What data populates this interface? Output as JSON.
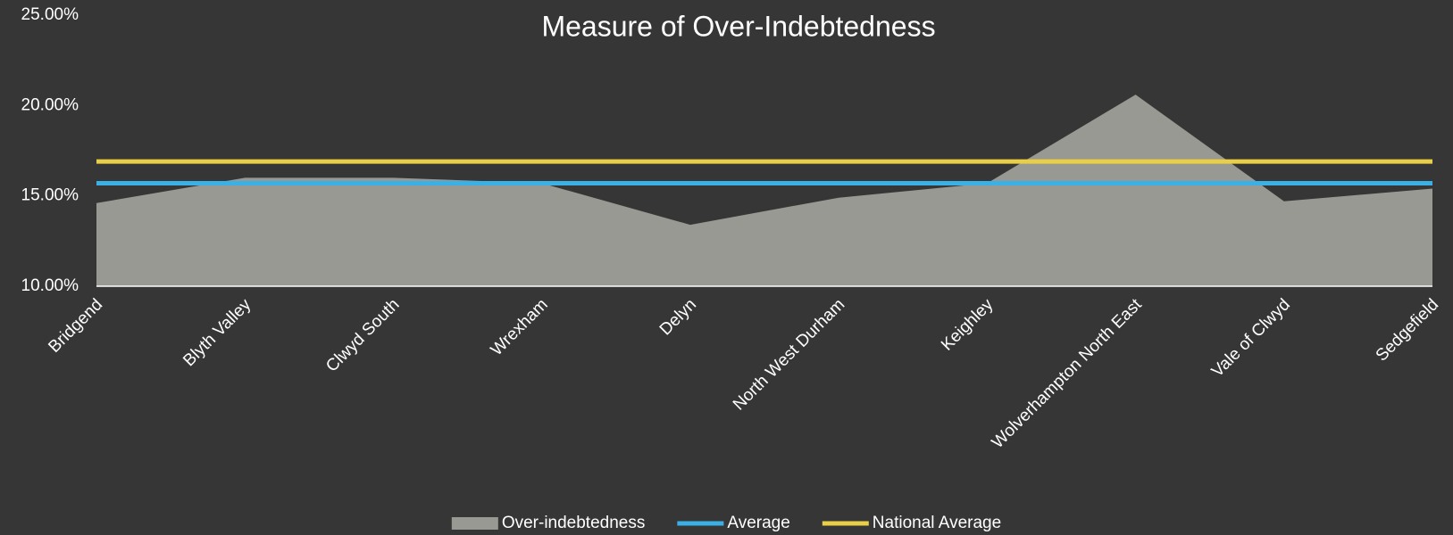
{
  "chart_data": {
    "type": "area",
    "title": "Measure of Over-Indebtedness",
    "categories": [
      "Bridgend",
      "Blyth Valley",
      "Clwyd South",
      "Wrexham",
      "Delyn",
      "North West Durham",
      "Keighley",
      "Wolverhampton North East",
      "Vale of Clwyd",
      "Sedgefield"
    ],
    "series": [
      {
        "name": "Over-indebtedness",
        "type": "area",
        "color": "#999993",
        "values": [
          14.6,
          16.0,
          16.0,
          15.7,
          13.4,
          14.9,
          15.7,
          20.6,
          14.7,
          15.4
        ]
      },
      {
        "name": "Average",
        "type": "line",
        "color": "#3bb0e6",
        "values": [
          15.7,
          15.7,
          15.7,
          15.7,
          15.7,
          15.7,
          15.7,
          15.7,
          15.7,
          15.7
        ]
      },
      {
        "name": "National Average",
        "type": "line",
        "color": "#e8cf47",
        "values": [
          16.9,
          16.9,
          16.9,
          16.9,
          16.9,
          16.9,
          16.9,
          16.9,
          16.9,
          16.9
        ]
      }
    ],
    "ylim": [
      10,
      25
    ],
    "yticks": [
      {
        "value": 10,
        "label": "10.00%"
      },
      {
        "value": 15,
        "label": "15.00%"
      },
      {
        "value": 20,
        "label": "20.00%"
      },
      {
        "value": 25,
        "label": "25.00%"
      }
    ],
    "grid": false,
    "legend": "bottom"
  }
}
